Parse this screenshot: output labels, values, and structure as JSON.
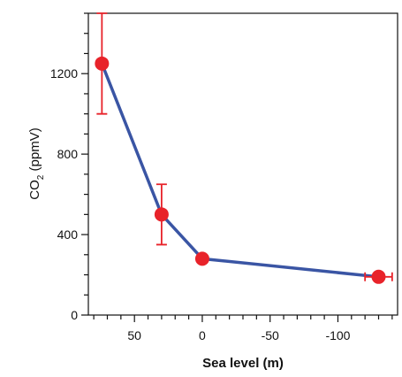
{
  "chart_data": {
    "type": "line",
    "ylabel": [
      "CO",
      "2",
      " (ppmV)"
    ],
    "xlabel": "Sea level (m)",
    "series": [
      {
        "color": "#3a55a4",
        "marker_color": "#e8232a",
        "x": [
          74,
          30,
          0,
          -130
        ],
        "values": [
          1250,
          500,
          280,
          190
        ],
        "errors": [
          250,
          150,
          null,
          null
        ],
        "xerrors": [
          null,
          null,
          null,
          10
        ]
      }
    ],
    "xlim": [
      84,
      -144
    ],
    "xticks": [
      50,
      0,
      -50,
      -100
    ],
    "xminorticks": [
      80,
      70,
      60,
      40,
      30,
      20,
      10,
      -10,
      -20,
      -30,
      -40,
      -60,
      -70,
      -80,
      -90,
      -110,
      -120,
      -130,
      -140
    ],
    "ylim": [
      0,
      1500
    ],
    "yticks": [
      0,
      400,
      800,
      1200
    ],
    "yminorticks": [
      100,
      200,
      300,
      500,
      600,
      700,
      900,
      1000,
      1100,
      1300,
      1400,
      1500
    ]
  }
}
